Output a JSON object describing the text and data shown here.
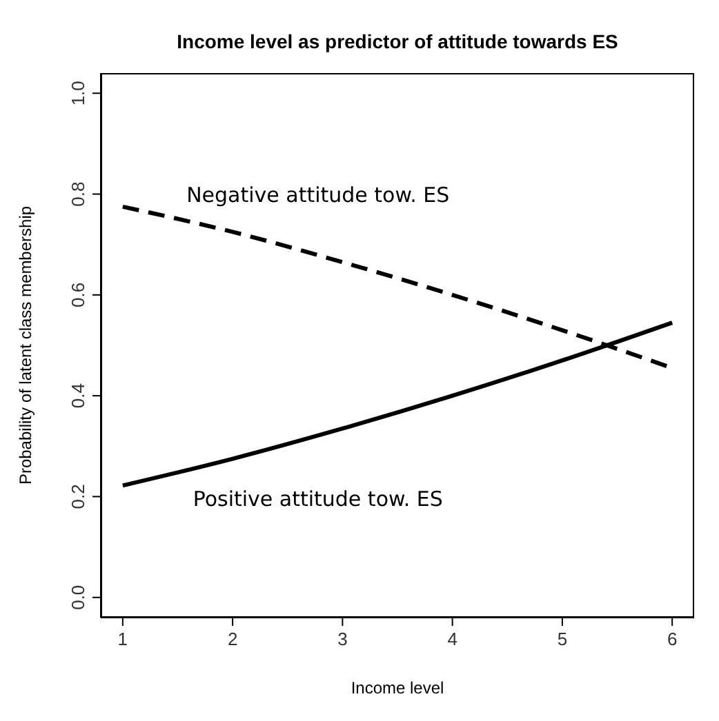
{
  "chart_data": {
    "type": "line",
    "title": "Income level as predictor of attitude towards ES",
    "xlabel": "Income level",
    "ylabel": "Probability of latent class membership",
    "x": [
      1,
      2,
      3,
      4,
      5,
      6
    ],
    "series": [
      {
        "name": "Negative attitude tow. ES",
        "color": "#000000",
        "line_style": "dashed",
        "values": [
          0.775,
          0.725,
          0.665,
          0.6,
          0.53,
          0.455
        ]
      },
      {
        "name": "Positive attitude tow. ES",
        "color": "#000000",
        "line_style": "solid",
        "values": [
          0.222,
          0.275,
          0.335,
          0.4,
          0.47,
          0.545
        ]
      }
    ],
    "xlim": [
      0.8,
      6.2
    ],
    "xticks": [
      1,
      2,
      3,
      4,
      5,
      6
    ],
    "ylim": [
      -0.04,
      1.04
    ],
    "yticks": [
      {
        "value": 0,
        "label": "0.0"
      },
      0.2,
      0.4,
      0.6,
      0.8,
      {
        "value": 1,
        "label": "1.0"
      }
    ],
    "grid": false,
    "legend": false,
    "marker": "none"
  }
}
